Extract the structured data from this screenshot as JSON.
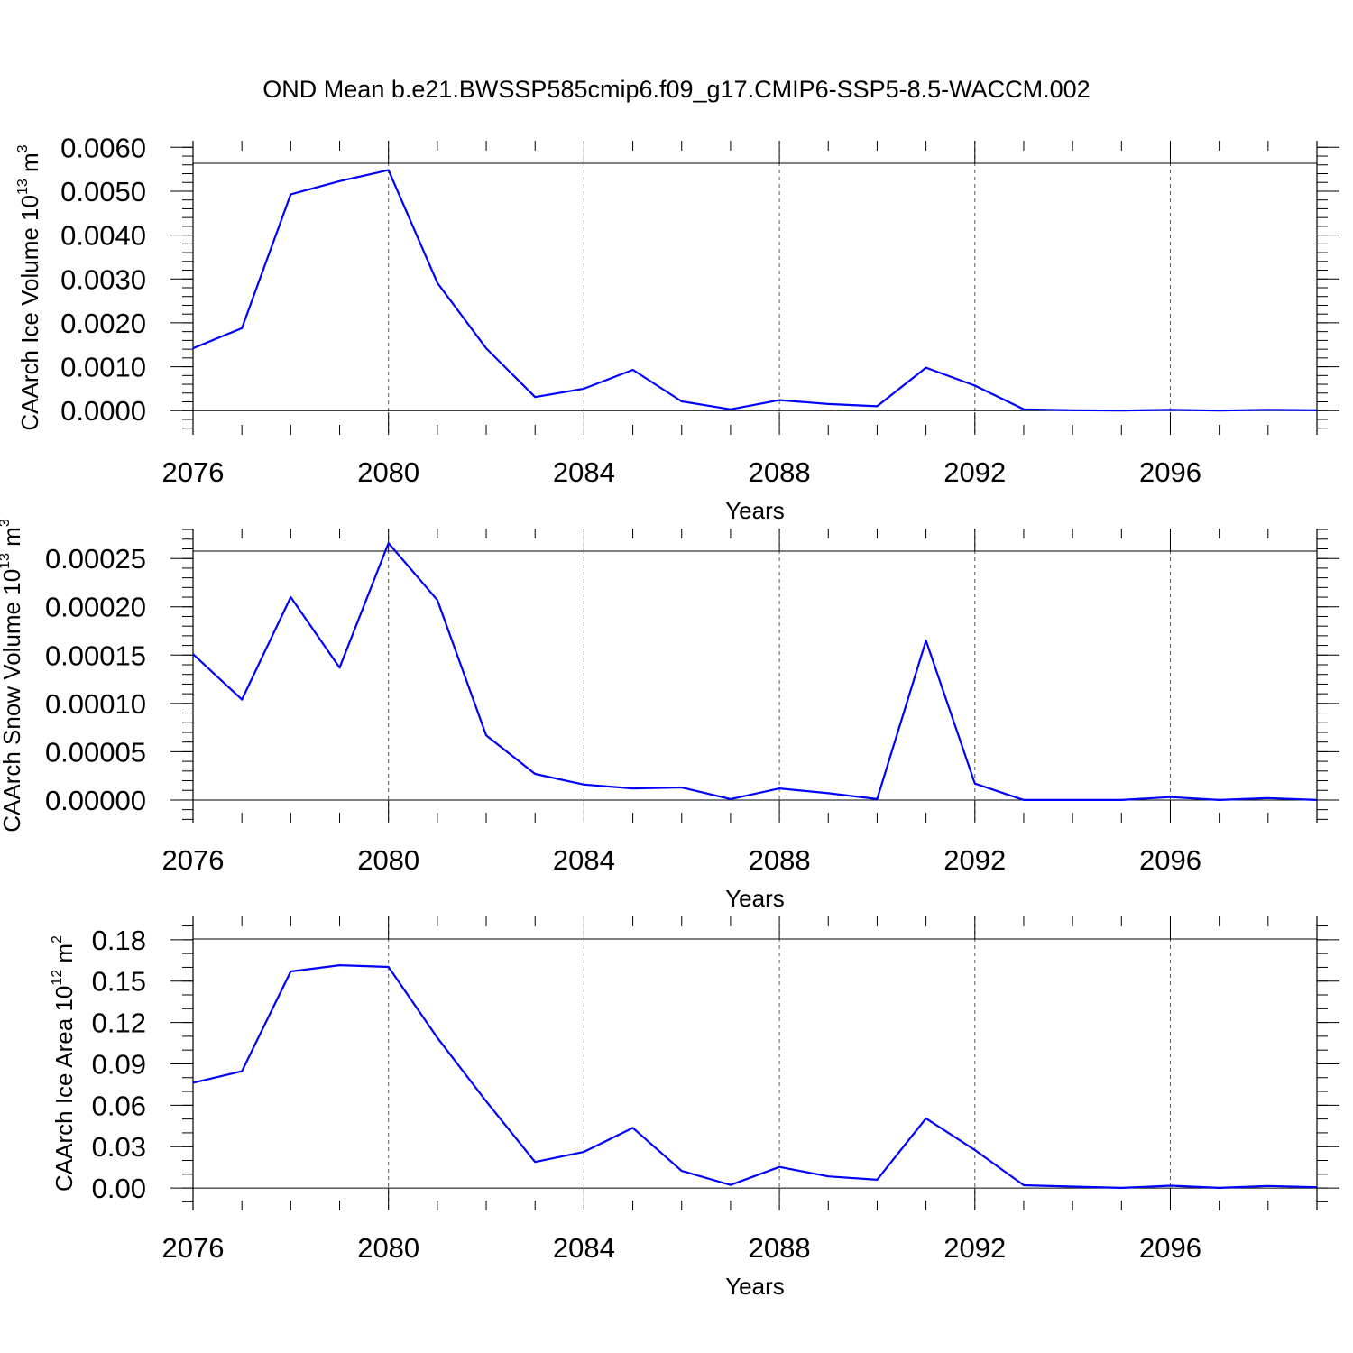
{
  "title": "OND Mean b.e21.BWSSP585cmip6.f09_g17.CMIP6-SSP5-8.5-WACCM.002",
  "chart_data": [
    {
      "type": "line",
      "title": "OND Mean b.e21.BWSSP585cmip6.f09_g17.CMIP6-SSP5-8.5-WACCM.002",
      "xlabel": "Years",
      "ylabel": "CAArch Ice Volume 10",
      "ylabel_exponent": "13",
      "ylabel_unit": "m",
      "ylabel_unit_exponent": "3",
      "xlim": [
        2076,
        2099
      ],
      "ylim": [
        -0.00055,
        0.00615
      ],
      "x_ticks": [
        2076,
        2080,
        2084,
        2088,
        2092,
        2096
      ],
      "x_tick_labels": [
        "2076",
        "2080",
        "2084",
        "2088",
        "2092",
        "2096"
      ],
      "y_ticks": [
        0,
        0.001,
        0.002,
        0.003,
        0.004,
        0.005,
        0.006
      ],
      "y_tick_labels": [
        "0.0000",
        "0.0010",
        "0.0020",
        "0.0030",
        "0.0040",
        "0.0050",
        "0.0060"
      ],
      "y_minor_step": 0.0002,
      "gridlines": "dashed vertical at major x ticks",
      "line_color": "#0000ff",
      "x": [
        2076,
        2077,
        2078,
        2079,
        2080,
        2081,
        2082,
        2083,
        2084,
        2085,
        2086,
        2087,
        2088,
        2089,
        2090,
        2091,
        2092,
        2093,
        2094,
        2095,
        2096,
        2097,
        2098,
        2099
      ],
      "series": [
        {
          "name": "CAArch Ice Volume",
          "values": [
            0.00142,
            0.00188,
            0.00493,
            0.00523,
            0.00548,
            0.00291,
            0.00142,
            0.00031,
            0.0005,
            0.00093,
            0.00021,
            3e-05,
            0.00024,
            0.00015,
            0.0001,
            0.00098,
            0.00057,
            3e-05,
            1e-05,
            0.0,
            2e-05,
            0.0,
            2e-05,
            1e-05
          ]
        }
      ]
    },
    {
      "type": "line",
      "xlabel": "Years",
      "ylabel": "CAArch Snow Volume 10",
      "ylabel_exponent": "13",
      "ylabel_unit": "m",
      "ylabel_unit_exponent": "3",
      "xlim": [
        2076,
        2099
      ],
      "ylim": [
        -2.34e-05,
        0.000281
      ],
      "x_ticks": [
        2076,
        2080,
        2084,
        2088,
        2092,
        2096
      ],
      "x_tick_labels": [
        "2076",
        "2080",
        "2084",
        "2088",
        "2092",
        "2096"
      ],
      "y_ticks": [
        0,
        5e-05,
        0.0001,
        0.00015,
        0.0002,
        0.00025
      ],
      "y_tick_labels": [
        "0.00000",
        "0.00005",
        "0.00010",
        "0.00015",
        "0.00020",
        "0.00025"
      ],
      "y_minor_step": 1e-05,
      "gridlines": "dashed vertical at major x ticks",
      "line_color": "#0000ff",
      "x": [
        2076,
        2077,
        2078,
        2079,
        2080,
        2081,
        2082,
        2083,
        2084,
        2085,
        2086,
        2087,
        2088,
        2089,
        2090,
        2091,
        2092,
        2093,
        2094,
        2095,
        2096,
        2097,
        2098,
        2099
      ],
      "series": [
        {
          "name": "CAArch Snow Volume",
          "values": [
            0.000151,
            0.000104,
            0.00021,
            0.000137,
            0.000266,
            0.000207,
            6.7e-05,
            2.7e-05,
            1.6e-05,
            1.2e-05,
            1.3e-05,
            1e-06,
            1.2e-05,
            7e-06,
            1e-06,
            0.000165,
            1.7e-05,
            0.0,
            0.0,
            0.0,
            3e-06,
            0.0,
            2e-06,
            0.0
          ]
        }
      ]
    },
    {
      "type": "line",
      "xlabel": "Years",
      "ylabel": "CAArch Ice Area 10",
      "ylabel_exponent": "12",
      "ylabel_unit": "m",
      "ylabel_unit_exponent": "2",
      "xlim": [
        2076,
        2099
      ],
      "ylim": [
        -0.0163,
        0.1969
      ],
      "x_ticks": [
        2076,
        2080,
        2084,
        2088,
        2092,
        2096
      ],
      "x_tick_labels": [
        "2076",
        "2080",
        "2084",
        "2088",
        "2092",
        "2096"
      ],
      "y_ticks": [
        0,
        0.03,
        0.06,
        0.09,
        0.12,
        0.15,
        0.18
      ],
      "y_tick_labels": [
        "0.00",
        "0.03",
        "0.06",
        "0.09",
        "0.12",
        "0.15",
        "0.18"
      ],
      "y_minor_step": 0.01,
      "gridlines": "dashed vertical at major x ticks",
      "line_color": "#0000ff",
      "x": [
        2076,
        2077,
        2078,
        2079,
        2080,
        2081,
        2082,
        2083,
        2084,
        2085,
        2086,
        2087,
        2088,
        2089,
        2090,
        2091,
        2092,
        2093,
        2094,
        2095,
        2096,
        2097,
        2098,
        2099
      ],
      "series": [
        {
          "name": "CAArch Ice Area",
          "values": [
            0.0763,
            0.0847,
            0.157,
            0.1615,
            0.1603,
            0.1089,
            0.0629,
            0.0189,
            0.0262,
            0.0436,
            0.0124,
            0.0022,
            0.0153,
            0.0084,
            0.006,
            0.0505,
            0.0275,
            0.002,
            0.001,
            0.0001,
            0.0017,
            0.0001,
            0.0015,
            0.0006
          ]
        }
      ]
    }
  ]
}
